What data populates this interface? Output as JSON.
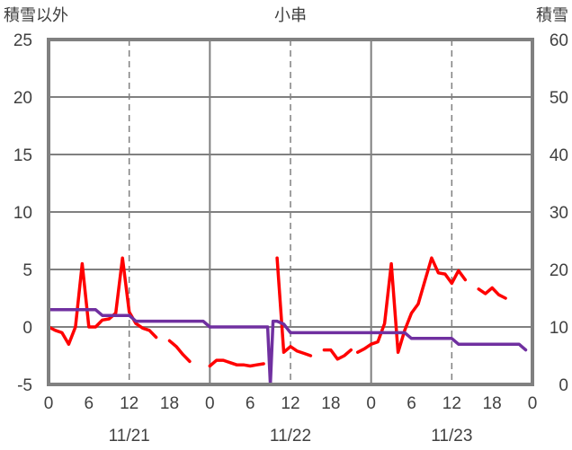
{
  "chart_data": {
    "type": "line",
    "title": "小串",
    "ylabel_left": "積雪以外",
    "ylabel_right": "積雪",
    "y_left": {
      "min": -5,
      "max": 25,
      "ticks": [
        -5,
        0,
        5,
        10,
        15,
        20,
        25
      ]
    },
    "y_right": {
      "min": 0,
      "max": 60,
      "ticks": [
        0,
        10,
        20,
        30,
        40,
        50,
        60
      ]
    },
    "x": {
      "min": 0,
      "max": 72,
      "unit": "hours",
      "tick_hours": [
        0,
        6,
        12,
        18,
        24,
        30,
        36,
        42,
        48,
        54,
        60,
        66,
        72
      ],
      "tick_labels": [
        "0",
        "6",
        "12",
        "18",
        "0",
        "6",
        "12",
        "18",
        "0",
        "6",
        "12",
        "18",
        "0"
      ],
      "day_boundaries": [
        24,
        48
      ],
      "noon_lines": [
        12,
        36,
        60
      ],
      "date_labels": [
        {
          "label": "11/21",
          "hour": 12
        },
        {
          "label": "11/22",
          "hour": 36
        },
        {
          "label": "11/23",
          "hour": 60
        }
      ]
    },
    "grid": "horizontal",
    "series": [
      {
        "axis": "left",
        "color": "#ff0000",
        "points": [
          [
            0,
            0
          ],
          [
            1,
            -0.3
          ],
          [
            2,
            -0.5
          ],
          [
            3,
            -1.5
          ],
          [
            4,
            0
          ],
          [
            5,
            5.5
          ],
          [
            6,
            0
          ],
          [
            7,
            0
          ],
          [
            8,
            0.6
          ],
          [
            9,
            0.7
          ],
          [
            10,
            1.2
          ],
          [
            11,
            6
          ],
          [
            12,
            1.3
          ],
          [
            13,
            0.3
          ],
          [
            14,
            -0.1
          ],
          [
            15,
            -0.3
          ],
          [
            16,
            -0.9
          ],
          null,
          [
            18,
            -1.2
          ],
          [
            19,
            -1.7
          ],
          [
            20,
            -2.4
          ],
          [
            21,
            -3
          ],
          null,
          [
            24,
            -3.4
          ],
          [
            25,
            -2.9
          ],
          [
            26,
            -2.9
          ],
          [
            27,
            -3.1
          ],
          [
            28,
            -3.3
          ],
          [
            29,
            -3.3
          ],
          [
            30,
            -3.4
          ],
          [
            31,
            -3.3
          ],
          [
            32,
            -3.2
          ],
          null,
          [
            34,
            6
          ],
          [
            35,
            -2.2
          ],
          [
            36,
            -1.7
          ],
          [
            37,
            -2.1
          ],
          [
            38,
            -2.3
          ],
          [
            39,
            -2.5
          ],
          null,
          [
            41,
            -2
          ],
          [
            42,
            -2
          ],
          [
            43,
            -2.8
          ],
          [
            44,
            -2.5
          ],
          [
            45,
            -2
          ],
          null,
          [
            46,
            -2.2
          ],
          [
            47,
            -1.9
          ],
          [
            48,
            -1.5
          ],
          [
            49,
            -1.3
          ],
          [
            50,
            0.3
          ],
          [
            51,
            5.5
          ],
          [
            52,
            -2.2
          ],
          [
            53,
            -0.3
          ],
          [
            54,
            1.2
          ],
          [
            55,
            2
          ],
          [
            56,
            4
          ],
          [
            57,
            6
          ],
          [
            58,
            4.7
          ],
          [
            59,
            4.6
          ],
          [
            60,
            3.8
          ],
          [
            61,
            4.9
          ],
          [
            62,
            4.1
          ],
          null,
          [
            64,
            3.3
          ],
          [
            65,
            2.9
          ],
          [
            66,
            3.4
          ],
          [
            67,
            2.8
          ],
          [
            68,
            2.5
          ]
        ]
      },
      {
        "axis": "right",
        "color": "#7030a0",
        "points": [
          [
            0,
            13
          ],
          [
            7,
            13
          ],
          [
            8,
            12
          ],
          [
            12,
            12
          ],
          [
            13,
            11
          ],
          [
            23,
            11
          ],
          [
            24,
            10
          ],
          [
            32.6,
            10
          ],
          [
            33,
            0
          ],
          [
            33.4,
            11
          ],
          [
            34,
            11
          ],
          [
            35,
            10.5
          ],
          [
            36,
            9
          ],
          [
            53,
            9
          ],
          [
            54,
            8
          ],
          [
            60,
            8
          ],
          [
            61,
            7
          ],
          [
            70,
            7
          ],
          [
            71,
            6
          ]
        ]
      }
    ]
  }
}
